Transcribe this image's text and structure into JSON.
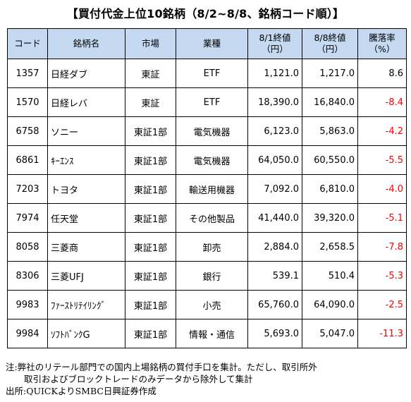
{
  "title": "【買付代金上位10銘柄（8/2~8/8、銘柄コード順）】",
  "table": {
    "headers": {
      "code": "コード",
      "name": "銘柄名",
      "market": "市場",
      "industry": "業種",
      "close_0801_line1": "8/1終値",
      "close_0801_line2": "（円）",
      "close_0808_line1": "8/8終値",
      "close_0808_line2": "（円）",
      "change_line1": "騰落率",
      "change_line2": "（%）"
    },
    "rows": [
      {
        "code": "1357",
        "name": "日経ダブ",
        "market": "東証",
        "industry": "ETF",
        "close_0801": "1,121.0",
        "close_0808": "1,217.0",
        "change": "8.6",
        "negative": false
      },
      {
        "code": "1570",
        "name": "日経レバ",
        "market": "東証",
        "industry": "ETF",
        "close_0801": "18,390.0",
        "close_0808": "16,840.0",
        "change": "-8.4",
        "negative": true
      },
      {
        "code": "6758",
        "name": "ソニー",
        "market": "東証1部",
        "industry": "電気機器",
        "close_0801": "6,123.0",
        "close_0808": "5,863.0",
        "change": "-4.2",
        "negative": true
      },
      {
        "code": "6861",
        "name": "ｷｰｴﾝｽ",
        "market": "東証1部",
        "industry": "電気機器",
        "close_0801": "64,050.0",
        "close_0808": "60,550.0",
        "change": "-5.5",
        "negative": true
      },
      {
        "code": "7203",
        "name": "トヨタ",
        "market": "東証1部",
        "industry": "輸送用機器",
        "close_0801": "7,092.0",
        "close_0808": "6,810.0",
        "change": "-4.0",
        "negative": true
      },
      {
        "code": "7974",
        "name": "任天堂",
        "market": "東証1部",
        "industry": "その他製品",
        "close_0801": "41,440.0",
        "close_0808": "39,320.0",
        "change": "-5.1",
        "negative": true
      },
      {
        "code": "8058",
        "name": "三菱商",
        "market": "東証1部",
        "industry": "卸売",
        "close_0801": "2,884.0",
        "close_0808": "2,658.5",
        "change": "-7.8",
        "negative": true
      },
      {
        "code": "8306",
        "name": "三菱UFJ",
        "market": "東証1部",
        "industry": "銀行",
        "close_0801": "539.1",
        "close_0808": "510.4",
        "change": "-5.3",
        "negative": true
      },
      {
        "code": "9983",
        "name": "ﾌｧｰｽﾄﾘﾃｲﾘﾝｸﾞ",
        "market": "東証1部",
        "industry": "小売",
        "close_0801": "65,760.0",
        "close_0808": "64,090.0",
        "change": "-2.5",
        "negative": true
      },
      {
        "code": "9984",
        "name": "ｿﾌﾄﾊﾞﾝｸG",
        "market": "東証1部",
        "industry": "情報・通信",
        "close_0801": "5,693.0",
        "close_0808": "5,047.0",
        "change": "-11.3",
        "negative": true
      }
    ]
  },
  "notes": {
    "line1": "注:弊社のリテール部門での国内上場銘柄の買付手口を集計。ただし、取引所外",
    "line2": "取引およびブロックトレードのみデータから除外して集計",
    "line3": "出所:QUICKよりSMBC日興証券作成"
  },
  "colors": {
    "header_bg": "#c5d9f1",
    "negative_text": "#ff0000"
  }
}
